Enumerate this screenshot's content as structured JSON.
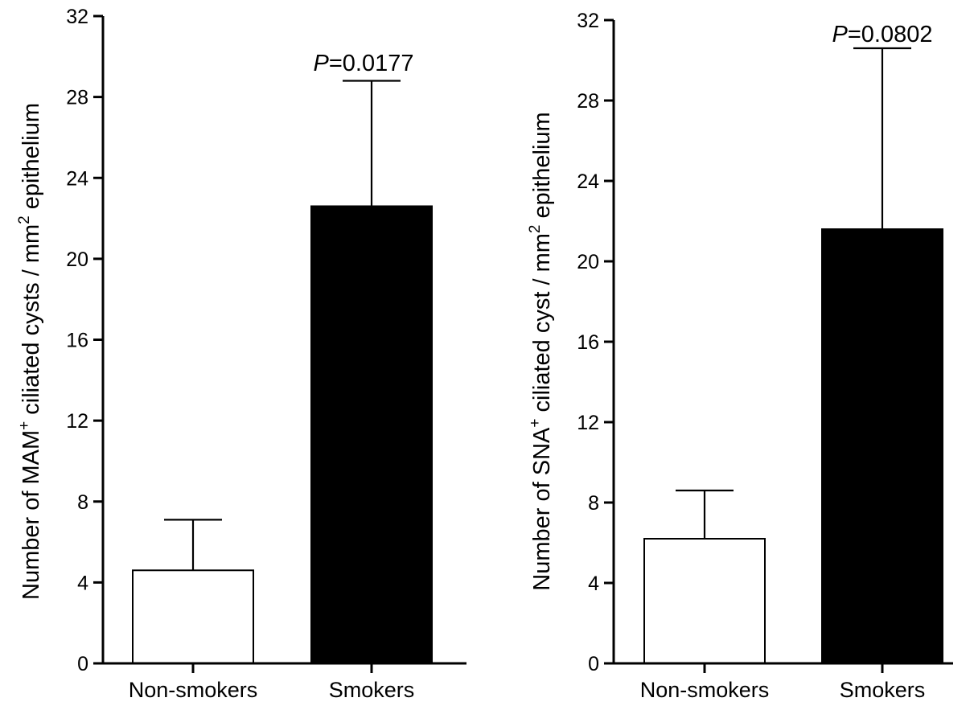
{
  "chart_data": [
    {
      "type": "bar",
      "categories": [
        "Non-smokers",
        "Smokers"
      ],
      "values": [
        4.6,
        22.6
      ],
      "errors": [
        2.5,
        6.2
      ],
      "bar_colors": [
        "#ffffff",
        "#000000"
      ],
      "ylim": [
        0,
        32
      ],
      "yticks": [
        0,
        4,
        8,
        12,
        16,
        20,
        24,
        28,
        32
      ],
      "ylabel": {
        "prefix": "Number of MAM",
        "sup": "+",
        "middle": " ciliated cysts / mm",
        "sup2": "2",
        "suffix": " epithelium"
      },
      "annotation": {
        "label": "P",
        "value": "=0.0177"
      }
    },
    {
      "type": "bar",
      "categories": [
        "Non-smokers",
        "Smokers"
      ],
      "values": [
        6.2,
        21.6
      ],
      "errors": [
        2.4,
        9.0
      ],
      "bar_colors": [
        "#ffffff",
        "#000000"
      ],
      "ylim": [
        0,
        32
      ],
      "yticks": [
        0,
        4,
        8,
        12,
        16,
        20,
        24,
        28,
        32
      ],
      "ylabel": {
        "prefix": "Number of SNA",
        "sup": "+",
        "middle": " ciliated cyst / mm",
        "sup2": "2",
        "suffix": " epithelium"
      },
      "annotation": {
        "label": "P",
        "value": "=0.0802"
      }
    }
  ]
}
